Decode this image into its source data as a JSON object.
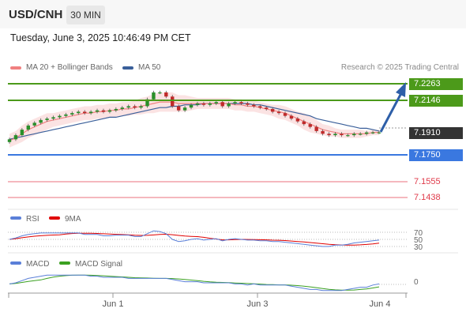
{
  "header": {
    "symbol": "USD/CNH",
    "timeframe": "30 MIN"
  },
  "timestamp": "Tuesday, June 3, 2025 10:46:49 PM CET",
  "legend": {
    "ma20": "MA 20 + Bollinger Bands",
    "ma50": "MA 50",
    "ma20_color": "#f08080",
    "ma50_color": "#3a5f9a"
  },
  "copyright": "Research © 2025 Trading Central",
  "levels": {
    "r2": "7.2263",
    "r1": "7.2146",
    "current": "7.1910",
    "pivot": "7.1750",
    "s1": "7.1555",
    "s2": "7.1438",
    "resistance_color": "#4c9a1a",
    "pivot_color": "#3a78e0",
    "support_color": "#e06070",
    "current_bg": "#333333"
  },
  "rsi": {
    "label": "RSI",
    "ma_label": "9MA",
    "levels": [
      "70",
      "50",
      "30"
    ],
    "rsi_color": "#5a7fd8",
    "ma_color": "#e00000"
  },
  "macd": {
    "label": "MACD",
    "signal_label": "MACD Signal",
    "zero": "0",
    "macd_color": "#5a7fd8",
    "signal_color": "#3aa020"
  },
  "x_axis": {
    "ticks": [
      "Jun 1",
      "Jun 3",
      "Jun 4"
    ]
  },
  "chart_data": {
    "type": "line",
    "title": "",
    "ylabel": "",
    "ylim": [
      7.135,
      7.232
    ],
    "close": [
      7.186,
      7.189,
      7.193,
      7.196,
      7.198,
      7.2,
      7.201,
      7.202,
      7.203,
      7.204,
      7.205,
      7.206,
      7.205,
      7.206,
      7.207,
      7.206,
      7.207,
      7.208,
      7.209,
      7.21,
      7.209,
      7.21,
      7.215,
      7.22,
      7.22,
      7.217,
      7.21,
      7.207,
      7.209,
      7.211,
      7.212,
      7.211,
      7.212,
      7.213,
      7.21,
      7.212,
      7.213,
      7.212,
      7.211,
      7.21,
      7.209,
      7.208,
      7.206,
      7.205,
      7.203,
      7.201,
      7.199,
      7.197,
      7.195,
      7.192,
      7.19,
      7.189,
      7.19,
      7.189,
      7.189,
      7.19,
      7.19,
      7.191,
      7.191,
      7.191
    ],
    "ma20": [
      7.185,
      7.187,
      7.19,
      7.193,
      7.195,
      7.197,
      7.199,
      7.2,
      7.201,
      7.202,
      7.203,
      7.204,
      7.205,
      7.205,
      7.206,
      7.206,
      7.207,
      7.207,
      7.208,
      7.208,
      7.209,
      7.21,
      7.211,
      7.212,
      7.213,
      7.213,
      7.213,
      7.212,
      7.212,
      7.212,
      7.212,
      7.212,
      7.212,
      7.212,
      7.212,
      7.212,
      7.211,
      7.211,
      7.21,
      7.21,
      7.209,
      7.208,
      7.207,
      7.206,
      7.205,
      7.203,
      7.201,
      7.199,
      7.197,
      7.195,
      7.193,
      7.192,
      7.191,
      7.19,
      7.19,
      7.19,
      7.19,
      7.19,
      7.191,
      7.191
    ],
    "ma50": [
      7.186,
      7.187,
      7.188,
      7.189,
      7.19,
      7.191,
      7.192,
      7.193,
      7.194,
      7.195,
      7.196,
      7.197,
      7.198,
      7.199,
      7.2,
      7.201,
      7.202,
      7.202,
      7.203,
      7.204,
      7.205,
      7.206,
      7.207,
      7.208,
      7.209,
      7.209,
      7.21,
      7.21,
      7.211,
      7.211,
      7.211,
      7.212,
      7.212,
      7.212,
      7.212,
      7.212,
      7.212,
      7.212,
      7.212,
      7.211,
      7.211,
      7.21,
      7.209,
      7.208,
      7.207,
      7.206,
      7.205,
      7.204,
      7.203,
      7.201,
      7.2,
      7.199,
      7.198,
      7.197,
      7.196,
      7.195,
      7.194,
      7.194,
      7.193,
      7.192
    ],
    "band_width": [
      0.005,
      0.005,
      0.006,
      0.006,
      0.006,
      0.006,
      0.006,
      0.005,
      0.005,
      0.005,
      0.005,
      0.005,
      0.005,
      0.005,
      0.005,
      0.005,
      0.005,
      0.005,
      0.005,
      0.005,
      0.005,
      0.006,
      0.006,
      0.007,
      0.007,
      0.007,
      0.007,
      0.006,
      0.006,
      0.005,
      0.004,
      0.004,
      0.004,
      0.004,
      0.004,
      0.004,
      0.004,
      0.004,
      0.004,
      0.004,
      0.004,
      0.004,
      0.004,
      0.005,
      0.005,
      0.005,
      0.005,
      0.006,
      0.006,
      0.005,
      0.004,
      0.004,
      0.003,
      0.003,
      0.003,
      0.003,
      0.003,
      0.002,
      0.002,
      0.002
    ],
    "projection": {
      "from": 7.191,
      "to": 7.2263
    }
  }
}
